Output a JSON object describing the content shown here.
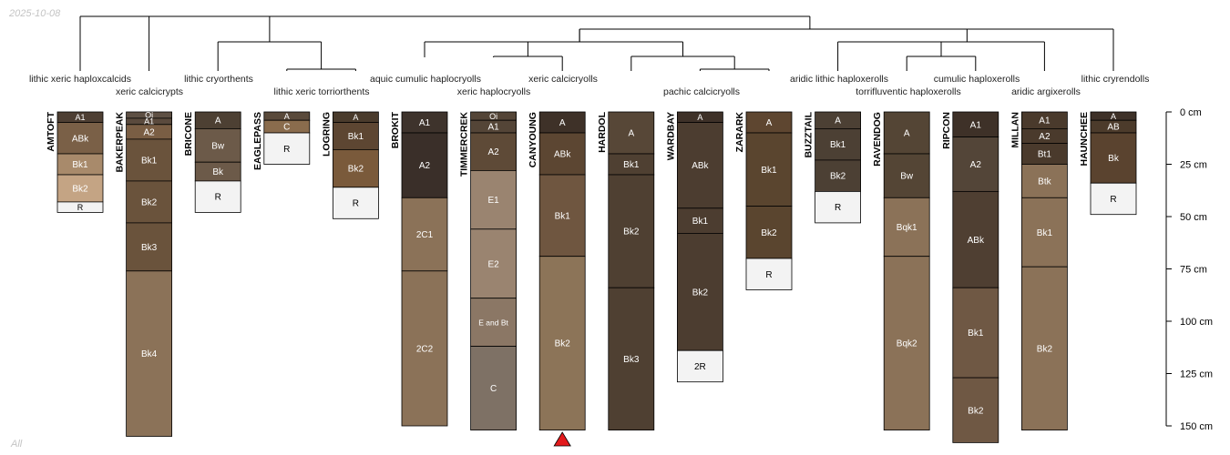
{
  "date_stamp": "2025-10-08",
  "subset_label": "All",
  "dendrogram_labels": [
    {
      "text": "lithic xeric haploxcalcids",
      "row": 1
    },
    {
      "text": "xeric calcicrypts",
      "row": 2
    },
    {
      "text": "lithic cryorthents",
      "row": 1
    },
    {
      "text": "lithic xeric torriorthents",
      "row": 2
    },
    {
      "text": "aquic cumulic haplocryolls",
      "row": 1
    },
    {
      "text": "xeric haplocryolls",
      "row": 2
    },
    {
      "text": "xeric calcicryolls",
      "row": 1
    },
    {
      "text": "pachic calcicryolls",
      "row": 2
    },
    {
      "text": "aridic lithic haploxerolls",
      "row": 1
    },
    {
      "text": "torrifluventic haploxerolls",
      "row": 2
    },
    {
      "text": "cumulic haploxerolls",
      "row": 1
    },
    {
      "text": "aridic argixerolls",
      "row": 2
    },
    {
      "text": "lithic cryrendolls",
      "row": 1
    }
  ],
  "depth_axis": {
    "unit": "cm",
    "max": 150,
    "ticks": [
      {
        "value": 0,
        "label": "0 cm"
      },
      {
        "value": 25,
        "label": "25 cm"
      },
      {
        "value": 50,
        "label": "50 cm"
      },
      {
        "value": 75,
        "label": "75 cm"
      },
      {
        "value": 100,
        "label": "100 cm"
      },
      {
        "value": 125,
        "label": "125 cm"
      },
      {
        "value": 150,
        "label": "150 cm"
      }
    ]
  },
  "marker_profile": "CANYOUNG",
  "marker_color": "#e31a1c",
  "profiles": [
    {
      "name": "AMTOFT",
      "horizons": [
        {
          "name": "A1",
          "top": 0,
          "bottom": 5,
          "color": "#4e3f33"
        },
        {
          "name": "ABk",
          "top": 5,
          "bottom": 20,
          "color": "#7a6047"
        },
        {
          "name": "Bk1",
          "top": 20,
          "bottom": 30,
          "color": "#a88a6b"
        },
        {
          "name": "Bk2",
          "top": 30,
          "bottom": 43,
          "color": "#c4a484"
        },
        {
          "name": "R",
          "top": 43,
          "bottom": 48,
          "color": "#f3f3f3"
        }
      ]
    },
    {
      "name": "BAKERPEAK",
      "horizons": [
        {
          "name": "Oi",
          "top": 0,
          "bottom": 3,
          "color": "#5e5044"
        },
        {
          "name": "A1",
          "top": 3,
          "bottom": 6,
          "color": "#5a4a3d"
        },
        {
          "name": "A2",
          "top": 6,
          "bottom": 13,
          "color": "#7a5e44"
        },
        {
          "name": "Bk1",
          "top": 13,
          "bottom": 33,
          "color": "#6a533c"
        },
        {
          "name": "Bk2",
          "top": 33,
          "bottom": 53,
          "color": "#6a533c"
        },
        {
          "name": "Bk3",
          "top": 53,
          "bottom": 76,
          "color": "#6a533c"
        },
        {
          "name": "Bk4",
          "top": 76,
          "bottom": 155,
          "color": "#8b7258"
        }
      ]
    },
    {
      "name": "BRICONE",
      "horizons": [
        {
          "name": "A",
          "top": 0,
          "bottom": 8,
          "color": "#4d4033"
        },
        {
          "name": "Bw",
          "top": 8,
          "bottom": 24,
          "color": "#6c5a49"
        },
        {
          "name": "Bk",
          "top": 24,
          "bottom": 33,
          "color": "#6c5a49"
        },
        {
          "name": "R",
          "top": 33,
          "bottom": 48,
          "color": "#f3f3f3"
        }
      ]
    },
    {
      "name": "EAGLEPASS",
      "horizons": [
        {
          "name": "A",
          "top": 0,
          "bottom": 4,
          "color": "#5a4a3b"
        },
        {
          "name": "C",
          "top": 4,
          "bottom": 10,
          "color": "#8a6c4d"
        },
        {
          "name": "R",
          "top": 10,
          "bottom": 25,
          "color": "#f3f3f3"
        }
      ]
    },
    {
      "name": "LOGRING",
      "horizons": [
        {
          "name": "A",
          "top": 0,
          "bottom": 5,
          "color": "#4a3b2c"
        },
        {
          "name": "Bk1",
          "top": 5,
          "bottom": 18,
          "color": "#5d4632"
        },
        {
          "name": "Bk2",
          "top": 18,
          "bottom": 36,
          "color": "#7a5a3b"
        },
        {
          "name": "R",
          "top": 36,
          "bottom": 51,
          "color": "#f3f3f3"
        }
      ]
    },
    {
      "name": "BROKIT",
      "horizons": [
        {
          "name": "A1",
          "top": 0,
          "bottom": 10,
          "color": "#3e332c"
        },
        {
          "name": "A2",
          "top": 10,
          "bottom": 41,
          "color": "#3a2f29"
        },
        {
          "name": "2C1",
          "top": 41,
          "bottom": 76,
          "color": "#8b7258"
        },
        {
          "name": "2C2",
          "top": 76,
          "bottom": 150,
          "color": "#8b7258"
        }
      ]
    },
    {
      "name": "TIMMERCREK",
      "horizons": [
        {
          "name": "Oi",
          "top": 0,
          "bottom": 4,
          "color": "#544537"
        },
        {
          "name": "A1",
          "top": 4,
          "bottom": 10,
          "color": "#544537"
        },
        {
          "name": "A2",
          "top": 10,
          "bottom": 28,
          "color": "#5e4a37"
        },
        {
          "name": "E1",
          "top": 28,
          "bottom": 56,
          "color": "#9a8470"
        },
        {
          "name": "E2",
          "top": 56,
          "bottom": 89,
          "color": "#9a8470"
        },
        {
          "name": "E and Bt",
          "top": 89,
          "bottom": 112,
          "color": "#8b7765"
        },
        {
          "name": "C",
          "top": 112,
          "bottom": 152,
          "color": "#7e7165"
        }
      ]
    },
    {
      "name": "CANYOUNG",
      "horizons": [
        {
          "name": "A",
          "top": 0,
          "bottom": 10,
          "color": "#3e3128"
        },
        {
          "name": "ABk",
          "top": 10,
          "bottom": 30,
          "color": "#5c4632"
        },
        {
          "name": "Bk1",
          "top": 30,
          "bottom": 69,
          "color": "#6f5640"
        },
        {
          "name": "Bk2",
          "top": 69,
          "bottom": 152,
          "color": "#8c7458"
        }
      ]
    },
    {
      "name": "HARDOL",
      "horizons": [
        {
          "name": "A",
          "top": 0,
          "bottom": 20,
          "color": "#574737"
        },
        {
          "name": "Bk1",
          "top": 20,
          "bottom": 30,
          "color": "#4f4032"
        },
        {
          "name": "Bk2",
          "top": 30,
          "bottom": 84,
          "color": "#4f4032"
        },
        {
          "name": "Bk3",
          "top": 84,
          "bottom": 152,
          "color": "#4f4032"
        }
      ]
    },
    {
      "name": "WARDBAY",
      "horizons": [
        {
          "name": "A",
          "top": 0,
          "bottom": 5,
          "color": "#3e3128"
        },
        {
          "name": "ABk",
          "top": 5,
          "bottom": 46,
          "color": "#4c3d30"
        },
        {
          "name": "Bk1",
          "top": 46,
          "bottom": 58,
          "color": "#4c3d30"
        },
        {
          "name": "Bk2",
          "top": 58,
          "bottom": 114,
          "color": "#4c3d30"
        },
        {
          "name": "2R",
          "top": 114,
          "bottom": 129,
          "color": "#f3f3f3"
        }
      ]
    },
    {
      "name": "ZARARK",
      "horizons": [
        {
          "name": "A",
          "top": 0,
          "bottom": 10,
          "color": "#5e4630"
        },
        {
          "name": "Bk1",
          "top": 10,
          "bottom": 45,
          "color": "#5a452f"
        },
        {
          "name": "Bk2",
          "top": 45,
          "bottom": 70,
          "color": "#5a452f"
        },
        {
          "name": "R",
          "top": 70,
          "bottom": 85,
          "color": "#f3f3f3"
        }
      ]
    },
    {
      "name": "BUZZTAIL",
      "horizons": [
        {
          "name": "A",
          "top": 0,
          "bottom": 8,
          "color": "#4c4034"
        },
        {
          "name": "Bk1",
          "top": 8,
          "bottom": 23,
          "color": "#4c4034"
        },
        {
          "name": "Bk2",
          "top": 23,
          "bottom": 38,
          "color": "#4c4034"
        },
        {
          "name": "R",
          "top": 38,
          "bottom": 53,
          "color": "#f3f3f3"
        }
      ]
    },
    {
      "name": "RAVENDOG",
      "horizons": [
        {
          "name": "A",
          "top": 0,
          "bottom": 20,
          "color": "#544535"
        },
        {
          "name": "Bw",
          "top": 20,
          "bottom": 41,
          "color": "#544535"
        },
        {
          "name": "Bqk1",
          "top": 41,
          "bottom": 69,
          "color": "#8b7258"
        },
        {
          "name": "Bqk2",
          "top": 69,
          "bottom": 152,
          "color": "#8b7258"
        }
      ]
    },
    {
      "name": "RIPCON",
      "horizons": [
        {
          "name": "A1",
          "top": 0,
          "bottom": 12,
          "color": "#3e3128"
        },
        {
          "name": "A2",
          "top": 12,
          "bottom": 38,
          "color": "#534538"
        },
        {
          "name": "ABk",
          "top": 38,
          "bottom": 84,
          "color": "#4f3f32"
        },
        {
          "name": "Bk1",
          "top": 84,
          "bottom": 127,
          "color": "#6f5844"
        },
        {
          "name": "Bk2",
          "top": 127,
          "bottom": 158,
          "color": "#6f5844"
        }
      ]
    },
    {
      "name": "MILLAN",
      "horizons": [
        {
          "name": "A1",
          "top": 0,
          "bottom": 8,
          "color": "#4a3a2c"
        },
        {
          "name": "A2",
          "top": 8,
          "bottom": 15,
          "color": "#4a3a2c"
        },
        {
          "name": "Bt1",
          "top": 15,
          "bottom": 25,
          "color": "#4a3a2c"
        },
        {
          "name": "Btk",
          "top": 25,
          "bottom": 41,
          "color": "#8b7258"
        },
        {
          "name": "Bk1",
          "top": 41,
          "bottom": 74,
          "color": "#8b7258"
        },
        {
          "name": "Bk2",
          "top": 74,
          "bottom": 152,
          "color": "#8b7258"
        }
      ]
    },
    {
      "name": "HAUNCHEE",
      "horizons": [
        {
          "name": "A",
          "top": 0,
          "bottom": 4,
          "color": "#3e3128"
        },
        {
          "name": "AB",
          "top": 4,
          "bottom": 10,
          "color": "#4c3b2b"
        },
        {
          "name": "Bk",
          "top": 10,
          "bottom": 34,
          "color": "#5a432f"
        },
        {
          "name": "R",
          "top": 34,
          "bottom": 49,
          "color": "#f3f3f3"
        }
      ]
    }
  ]
}
